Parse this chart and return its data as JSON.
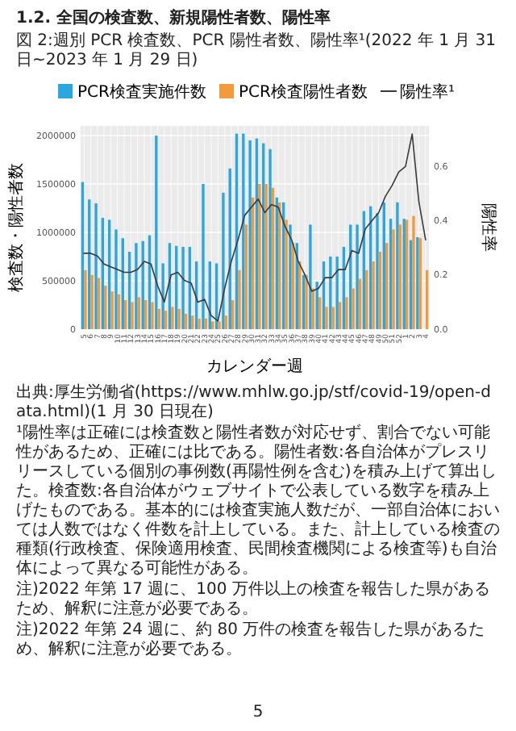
{
  "chart_data": {
    "type": "bar",
    "title": "図 2:週別 PCR 検査数、PCR 陽性者数、陽性率¹(2022 年 1 月 31 日~2023 年 1 月 29 日)",
    "xlabel": "カレンダー週",
    "ylabel": "検査数・陽性者数",
    "y2label": "陽性率",
    "categories": [
      "5",
      "6",
      "7",
      "8",
      "9",
      "10",
      "11",
      "12",
      "13",
      "14",
      "15",
      "16",
      "17",
      "18",
      "19",
      "20",
      "21",
      "22",
      "23",
      "24",
      "25",
      "26",
      "27",
      "28",
      "29",
      "30",
      "31",
      "32",
      "33",
      "34",
      "35",
      "36",
      "37",
      "38",
      "39",
      "40",
      "41",
      "42",
      "43",
      "44",
      "45",
      "46",
      "47",
      "48",
      "49",
      "50",
      "51",
      "52",
      "1",
      "2",
      "3",
      "4"
    ],
    "series": [
      {
        "name": "PCR検査実施件数",
        "color": "#2ba6de",
        "values": [
          1520000,
          1340000,
          1300000,
          1150000,
          1130000,
          1030000,
          940000,
          800000,
          890000,
          910000,
          970000,
          2000000,
          680000,
          890000,
          860000,
          850000,
          850000,
          700000,
          1500000,
          700000,
          680000,
          1410000,
          1660000,
          2020000,
          2020000,
          1950000,
          1970000,
          1920000,
          1860000,
          1360000,
          1310000,
          1080000,
          890000,
          560000,
          1080000,
          490000,
          700000,
          750000,
          750000,
          850000,
          1080000,
          1080000,
          1220000,
          1270000,
          1200000,
          1310000,
          1140000,
          1310000,
          1140000,
          920000,
          950000,
          null
        ]
      },
      {
        "name": "PCR検査陽性者数",
        "color": "#f39a3c",
        "values": [
          610000,
          560000,
          530000,
          450000,
          390000,
          360000,
          300000,
          280000,
          330000,
          300000,
          280000,
          210000,
          190000,
          230000,
          210000,
          160000,
          140000,
          110000,
          110000,
          80000,
          80000,
          140000,
          300000,
          610000,
          1080000,
          1360000,
          1500000,
          1500000,
          1460000,
          1310000,
          1130000,
          890000,
          700000,
          560000,
          420000,
          330000,
          230000,
          230000,
          280000,
          330000,
          420000,
          520000,
          610000,
          700000,
          800000,
          890000,
          1030000,
          1080000,
          1130000,
          1170000,
          940000,
          610000
        ]
      },
      {
        "name": "陽性率¹",
        "type": "line",
        "axis": "y2",
        "color": "#3a3a3a",
        "values": [
          0.28,
          0.28,
          0.27,
          0.24,
          0.23,
          0.22,
          0.21,
          0.21,
          0.22,
          0.25,
          0.24,
          0.16,
          0.1,
          0.2,
          0.21,
          0.18,
          0.17,
          0.1,
          0.11,
          0.05,
          0.03,
          0.15,
          0.25,
          0.33,
          0.42,
          0.45,
          0.48,
          0.43,
          0.46,
          0.45,
          0.38,
          0.33,
          0.25,
          0.2,
          0.14,
          0.15,
          0.19,
          0.19,
          0.22,
          0.22,
          0.29,
          0.28,
          0.37,
          0.4,
          0.43,
          0.49,
          0.53,
          0.58,
          0.6,
          0.72,
          0.47,
          0.33
        ]
      }
    ],
    "ylim": [
      0,
      2100000
    ],
    "yticks": [
      0,
      500000,
      1000000,
      1500000,
      2000000
    ],
    "y2lim": [
      0,
      0.75
    ],
    "y2ticks": [
      {
        "value": 0,
        "label": "0.0"
      },
      {
        "value": 0.2,
        "label": "0.2"
      },
      {
        "value": 0.4,
        "label": "0.4"
      },
      {
        "value": 0.6,
        "label": "0.6"
      }
    ],
    "grid": true,
    "legend": "top",
    "annotations": [
      "1.2. 全国の検査数、新規陽性者数、陽性率",
      "出典:厚生労働省(https://www.mhlw.go.jp/stf/covid-19/open-data.html)(1 月 30 日現在)",
      "¹陽性率は正確には検査数と陽性者数が対応せず、割合でない可能性があるため、正確には比である。陽性者数:各自治体がプレスリリースしている個別の事例数(再陽性例を含む)を積み上げて算出した。検査数:各自治体がウェブサイトで公表している数字を積み上げたものである。基本的には検査実施人数だが、一部自治体においては人数ではなく件数を計上している。また、計上している検査の種類(行政検査、保険適用検査、民間検査機関による検査等)も自治体によって異なる可能性がある。",
      "注)2022 年第 17 週に、100 万件以上の検査を報告した県があるため、解釈に注意が必要である。",
      "注)2022 年第 24 週に、約 80 万件の検査を報告した県があるため、解釈に注意が必要である。",
      "5"
    ]
  }
}
